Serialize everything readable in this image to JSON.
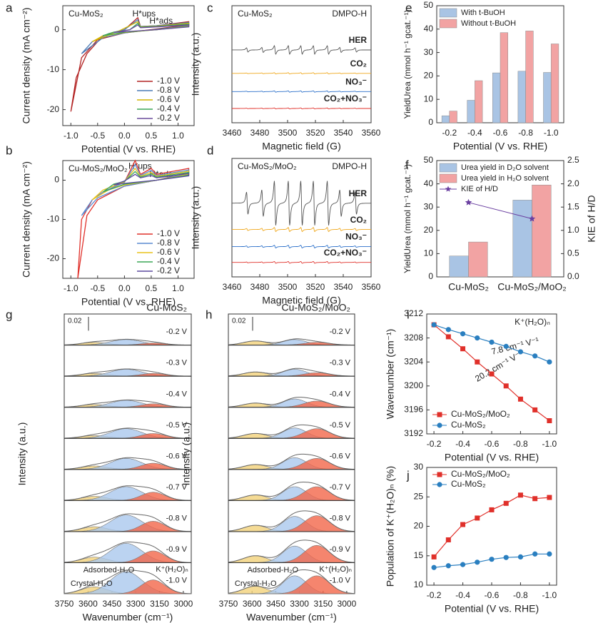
{
  "chart_data": [
    {
      "panel": "a",
      "type": "cv",
      "title": "Cu-MoS₂",
      "annotations": [
        "H*ups",
        "H*ads"
      ],
      "xlabel": "Potential (V vs. RHE)",
      "ylabel": "Current density (mA cm⁻²)",
      "xlim": [
        -1.15,
        1.3
      ],
      "xticks": [
        {
          "value": -1,
          "label": "-1.0"
        },
        -0.5,
        {
          "value": 0,
          "label": "0.0"
        },
        0.5,
        {
          "value": 1,
          "label": "1.0"
        }
      ],
      "ylim": [
        -24,
        6
      ],
      "yticks": [
        -20,
        -10,
        0
      ],
      "series": [
        {
          "name": "-1.0 V",
          "color": "#b22222",
          "x": [
            -1.0,
            -0.9,
            -0.7,
            -0.4,
            0.0,
            0.25,
            0.3,
            0.6,
            1.2,
            1.2,
            0.6,
            0.0,
            -0.5,
            -0.8,
            -1.0
          ],
          "values": [
            -20.5,
            -12,
            -6,
            -1.5,
            0.0,
            3.0,
            0.8,
            1.0,
            2.0,
            1.2,
            0.2,
            -0.8,
            -2.5,
            -7,
            -20.5
          ]
        },
        {
          "name": "-0.8 V",
          "color": "#4a7ab5",
          "x": [
            -0.8,
            -0.6,
            -0.3,
            0.0,
            0.25,
            0.3,
            0.6,
            1.2,
            1.2,
            0.6,
            0.0,
            -0.4,
            -0.8
          ],
          "values": [
            -6,
            -3,
            -1,
            0,
            2.5,
            0.8,
            1,
            1.8,
            1,
            0.1,
            -0.8,
            -2,
            -6
          ]
        },
        {
          "name": "-0.6 V",
          "color": "#d4b400",
          "x": [
            -0.6,
            -0.4,
            -0.1,
            0.25,
            0.3,
            0.6,
            1.2,
            1.2,
            0.6,
            0.0,
            -0.3,
            -0.6
          ],
          "values": [
            -3,
            -1.5,
            -0.3,
            2,
            0.7,
            0.9,
            1.6,
            0.9,
            0,
            -0.7,
            -1.4,
            -3
          ]
        },
        {
          "name": "-0.4 V",
          "color": "#3aa657",
          "x": [
            -0.4,
            -0.2,
            0.1,
            0.25,
            0.3,
            0.6,
            1.2,
            1.2,
            0.6,
            0.0,
            -0.4
          ],
          "values": [
            -1.5,
            -0.6,
            0,
            1.6,
            0.6,
            0.8,
            1.4,
            0.8,
            0,
            -0.6,
            -1.5
          ]
        },
        {
          "name": "-0.2 V",
          "color": "#6a4c9c",
          "x": [
            -0.2,
            0.1,
            0.25,
            0.3,
            0.6,
            1.2,
            1.2,
            0.6,
            0.0,
            -0.2
          ],
          "values": [
            -0.7,
            0,
            1.2,
            0.5,
            0.7,
            1.2,
            0.7,
            0,
            -0.5,
            -0.7
          ]
        }
      ]
    },
    {
      "panel": "b",
      "type": "cv",
      "title": "Cu-MoS₂/MoO₂",
      "annotations": [
        "H*ups",
        "H*ads"
      ],
      "xlabel": "Potential (V vs. RHE)",
      "ylabel": "Current density (mA cm⁻²)",
      "xlim": [
        -1.15,
        1.3
      ],
      "xticks": [
        {
          "value": -1,
          "label": "-1.0"
        },
        -0.5,
        {
          "value": 0,
          "label": "0.0"
        },
        0.5,
        {
          "value": 1,
          "label": "1.0"
        }
      ],
      "ylim": [
        -25,
        5
      ],
      "yticks": [
        -20,
        -10,
        0
      ],
      "series": [
        {
          "name": "-1.0 V",
          "color": "#e0302a",
          "x": [
            -0.87,
            -0.8,
            -0.6,
            -0.4,
            0.0,
            0.2,
            0.3,
            0.5,
            0.6,
            1.2,
            1.2,
            0.6,
            0.0,
            -0.5,
            -0.7,
            -0.87
          ],
          "values": [
            -25,
            -10,
            -5,
            -3,
            -0.5,
            5,
            1.5,
            3,
            1.5,
            3,
            2,
            0,
            -1.5,
            -5,
            -9,
            -25
          ]
        },
        {
          "name": "-0.8 V",
          "color": "#5a8ad0",
          "x": [
            -0.8,
            -0.6,
            -0.4,
            0.0,
            0.2,
            0.3,
            0.5,
            0.6,
            1.2,
            1.2,
            0.6,
            0.0,
            -0.5,
            -0.8
          ],
          "values": [
            -9,
            -5,
            -3,
            -0.5,
            4,
            1.2,
            2.5,
            1.2,
            2.6,
            1.8,
            0,
            -1.5,
            -4.5,
            -9
          ]
        },
        {
          "name": "-0.6 V",
          "color": "#e8c21a",
          "x": [
            -0.6,
            -0.4,
            0.0,
            0.2,
            0.3,
            0.5,
            0.6,
            1.2,
            1.2,
            0.6,
            0.0,
            -0.3,
            -0.6
          ],
          "values": [
            -5,
            -2.5,
            -0.4,
            3,
            1,
            2,
            1,
            2.3,
            1.5,
            0,
            -1.2,
            -2.5,
            -5
          ]
        },
        {
          "name": "-0.4 V",
          "color": "#3aa657",
          "x": [
            -0.4,
            -0.2,
            0.0,
            0.2,
            0.3,
            0.5,
            0.6,
            1.2,
            1.2,
            0.6,
            0.0,
            -0.4
          ],
          "values": [
            -3,
            -1,
            -0.3,
            2.2,
            0.8,
            1.6,
            0.8,
            2,
            1.3,
            0,
            -1,
            -3
          ]
        },
        {
          "name": "-0.2 V",
          "color": "#5b4a9e",
          "x": [
            -0.2,
            0.0,
            0.2,
            0.3,
            0.5,
            0.6,
            1.2,
            1.2,
            0.6,
            0.0,
            -0.2
          ],
          "values": [
            -1.2,
            -0.2,
            1.5,
            0.6,
            1.2,
            0.6,
            1.7,
            1.1,
            0,
            -0.8,
            -1.2
          ]
        }
      ]
    },
    {
      "panel": "c",
      "type": "epr",
      "title": "Cu-MoS₂",
      "subtitle": "DMPO-H",
      "xlabel": "Magnetic field (G)",
      "ylabel": "Intensity (a.u.)",
      "xlim": [
        3460,
        3560
      ],
      "xticks": [
        3460,
        3480,
        3500,
        3520,
        3540,
        3560
      ],
      "ylim": [
        -0.3,
        4.2
      ],
      "peaks": [
        3471,
        3482,
        3491,
        3501,
        3510,
        3519,
        3529,
        3538,
        3549
      ],
      "intensities": [
        0.5,
        0.6,
        1,
        1,
        1,
        1,
        1,
        0.6,
        0.5
      ],
      "traces": [
        {
          "name": "HER",
          "color": "#555555",
          "label_color": "#9a9a9a",
          "offset": 2.5,
          "amplitude": 0.25
        },
        {
          "name": "CO₂",
          "color": "#f0a81c",
          "offset": 1.6,
          "amplitude": 0.04
        },
        {
          "name": "NO₃⁻",
          "color": "#2a6fc9",
          "offset": 0.9,
          "amplitude": 0.04
        },
        {
          "name": "CO₂+NO₃⁻",
          "color": "#e0302a",
          "offset": 0.25,
          "amplitude": 0.03
        }
      ]
    },
    {
      "panel": "d",
      "type": "epr",
      "title": "Cu-MoS₂/MoO₂",
      "subtitle": "DMPO-H",
      "xlabel": "Magnetic field (G)",
      "ylabel": "Intensity (a.u.)",
      "xlim": [
        3460,
        3560
      ],
      "xticks": [
        3460,
        3480,
        3500,
        3520,
        3540,
        3560
      ],
      "ylim": [
        -0.3,
        4.2
      ],
      "peaks": [
        3471,
        3482,
        3491,
        3501,
        3510,
        3519,
        3529,
        3538,
        3549
      ],
      "intensities": [
        0.5,
        0.6,
        1,
        1,
        1,
        1,
        1,
        0.6,
        0.5
      ],
      "traces": [
        {
          "name": "HER",
          "color": "#555555",
          "label_color": "#9a9a9a",
          "offset": 2.5,
          "amplitude": 1.3
        },
        {
          "name": "CO₂",
          "color": "#f0a81c",
          "offset": 1.5,
          "amplitude": 0.12
        },
        {
          "name": "NO₃⁻",
          "color": "#2a6fc9",
          "offset": 0.85,
          "amplitude": 0.08
        },
        {
          "name": "CO₂+NO₃⁻",
          "color": "#e0302a",
          "offset": 0.25,
          "amplitude": 0.05
        }
      ]
    },
    {
      "panel": "e",
      "type": "bar",
      "xlabel": "Potential (V vs. RHE)",
      "ylabel": "YieldUrea (mmol h⁻¹ gcat.⁻¹)",
      "categories": [
        "-0.2",
        "-0.4",
        "-0.6",
        "-0.8",
        "-1.0"
      ],
      "ylim": [
        0,
        50
      ],
      "yticks": [
        0,
        10,
        20,
        30,
        40,
        50
      ],
      "legend": "upper left",
      "series": [
        {
          "name": "With t-BuOH",
          "color": "#a9c4e4",
          "values": [
            3,
            9.6,
            21.3,
            22,
            21.5
          ]
        },
        {
          "name": "Without t-BuOH",
          "color": "#f2a3a3",
          "values": [
            5,
            18,
            38.5,
            39.2,
            33.7
          ]
        }
      ]
    },
    {
      "panel": "f",
      "type": "bar",
      "ylabel": "YieldUrea (mmol h⁻¹ gcat.⁻¹)",
      "y2label": "KIE of H/D",
      "categories": [
        "Cu-MoS₂",
        "Cu-MoS₂/MoO₂"
      ],
      "ylim": [
        0,
        50
      ],
      "yticks": [
        0,
        10,
        20,
        30,
        40,
        50
      ],
      "y2lim": [
        0,
        2.5
      ],
      "y2ticks": [
        {
          "value": 0,
          "label": "0.0"
        },
        0.5,
        {
          "value": 1,
          "label": "1.0"
        },
        1.5,
        {
          "value": 2,
          "label": "2.0"
        },
        2.5
      ],
      "legend": "upper left",
      "series": [
        {
          "name": "Urea yield in D₂O solvent",
          "color": "#a9c4e4",
          "values": [
            9,
            33
          ]
        },
        {
          "name": "Urea yield in H₂O solvent",
          "color": "#f2a3a3",
          "values": [
            15,
            39.5
          ]
        },
        {
          "name": "KIE of H/D",
          "color": "#6a3fa0",
          "axis": "y2",
          "values": [
            1.6,
            1.25
          ]
        }
      ]
    },
    {
      "panel": "g",
      "type": "spectra",
      "title": "Cu-MoS₂",
      "scale_bar": 0.02,
      "xlabel": "Wavenumber (cm⁻¹)",
      "ylabel": "Intensity (a.u.)",
      "xlim": [
        3750,
        2950
      ],
      "xticks": [
        3750,
        3600,
        3450,
        3300,
        3150,
        3000
      ],
      "ylim": [
        0,
        0.045
      ],
      "components": [
        {
          "name": "Crystal-H₂O",
          "color": "#f2d27a",
          "label_color": "#e0b030",
          "center": 3560,
          "width": 80
        },
        {
          "name": "Adsorbed-H₂O",
          "color": "#aac8ee",
          "label_color": "#5a9bd5",
          "center": 3360,
          "width": 100
        },
        {
          "name": "K⁺(H₂O)ₙ",
          "color": "#f2674a",
          "label_color": "#e0302a",
          "center": 3190,
          "width": 75
        }
      ],
      "rows": [
        {
          "label": "-0.2 V",
          "amplitudes": [
            0.004,
            0.008,
            0.003
          ]
        },
        {
          "label": "-0.3 V",
          "amplitudes": [
            0.004,
            0.01,
            0.004
          ]
        },
        {
          "label": "-0.4 V",
          "amplitudes": [
            0.004,
            0.01,
            0.005
          ]
        },
        {
          "label": "-0.5 V",
          "amplitudes": [
            0.004,
            0.014,
            0.007
          ]
        },
        {
          "label": "-0.6 V",
          "amplitudes": [
            0.005,
            0.016,
            0.009
          ]
        },
        {
          "label": "-0.7 V",
          "amplitudes": [
            0.006,
            0.02,
            0.012
          ]
        },
        {
          "label": "-0.8 V",
          "amplitudes": [
            0.007,
            0.024,
            0.015
          ]
        },
        {
          "label": "-0.9 V",
          "amplitudes": [
            0.008,
            0.028,
            0.017
          ]
        },
        {
          "label": "-1.0 V",
          "amplitudes": [
            0.01,
            0.032,
            0.02
          ]
        }
      ]
    },
    {
      "panel": "h",
      "type": "spectra",
      "title": "Cu-MoS₂/MoO₂",
      "scale_bar": 0.02,
      "xlabel": "Wavenumber (cm⁻¹)",
      "ylabel": "Intensity (a.u.)",
      "xlim": [
        3750,
        2950
      ],
      "xticks": [
        3750,
        3600,
        3450,
        3300,
        3150,
        3000
      ],
      "ylim": [
        0,
        0.045
      ],
      "components": [
        {
          "name": "Crystal-H₂O",
          "color": "#f2d27a",
          "label_color": "#e0b030",
          "center": 3580,
          "width": 75
        },
        {
          "name": "Adsorbed-H₂O",
          "color": "#aac8ee",
          "label_color": "#5a9bd5",
          "center": 3330,
          "width": 75
        },
        {
          "name": "K⁺(H₂O)ₙ",
          "color": "#f2674a",
          "label_color": "#e0302a",
          "center": 3190,
          "width": 80
        }
      ],
      "rows": [
        {
          "label": "-0.2 V",
          "amplitudes": [
            0.006,
            0.008,
            0.004
          ]
        },
        {
          "label": "-0.3 V",
          "amplitudes": [
            0.006,
            0.01,
            0.005
          ]
        },
        {
          "label": "-0.4 V",
          "amplitudes": [
            0.006,
            0.012,
            0.009
          ]
        },
        {
          "label": "-0.5 V",
          "amplitudes": [
            0.007,
            0.015,
            0.014
          ]
        },
        {
          "label": "-0.6 V",
          "amplitudes": [
            0.007,
            0.017,
            0.016
          ]
        },
        {
          "label": "-0.7 V",
          "amplitudes": [
            0.008,
            0.02,
            0.02
          ]
        },
        {
          "label": "-0.8 V",
          "amplitudes": [
            0.009,
            0.022,
            0.023
          ]
        },
        {
          "label": "-0.9 V",
          "amplitudes": [
            0.01,
            0.024,
            0.025
          ]
        },
        {
          "label": "-1.0 V",
          "amplitudes": [
            0.011,
            0.026,
            0.026
          ]
        }
      ]
    },
    {
      "panel": "i",
      "type": "scatter",
      "xlabel": "Potential (V vs. RHE)",
      "ylabel": "Wavenumber (cm⁻¹)",
      "annotations": [
        {
          "text": "K⁺(H₂O)ₙ",
          "color": "#222222"
        },
        {
          "text": "7.8 cm⁻¹ V⁻¹",
          "color": "#2a7fc0"
        },
        {
          "text": "20.2 cm⁻¹ V⁻¹",
          "color": "#e0302a"
        }
      ],
      "x": [
        -0.2,
        -0.3,
        -0.4,
        -0.5,
        -0.6,
        -0.7,
        -0.8,
        -0.9,
        -1.0
      ],
      "xlim": [
        -0.15,
        -1.05
      ],
      "xticks": [
        -0.2,
        -0.4,
        -0.6,
        -0.8,
        {
          "value": -1,
          "label": "-1.0"
        }
      ],
      "ylim": [
        3192,
        3212
      ],
      "yticks": [
        3192,
        3196,
        3200,
        3204,
        3208,
        3212
      ],
      "legend": "lower left",
      "series": [
        {
          "name": "Cu-MoS₂/MoO₂",
          "color": "#e0302a",
          "marker": "square",
          "values": [
            3210.2,
            3208.2,
            3206.2,
            3204,
            3202,
            3200,
            3197.8,
            3196,
            3194.2
          ]
        },
        {
          "name": "Cu-MoS₂",
          "color": "#2a7fc0",
          "marker": "circle",
          "values": [
            3210.2,
            3209.4,
            3208.7,
            3208,
            3207.3,
            3206.6,
            3205.7,
            3205,
            3204
          ]
        }
      ]
    },
    {
      "panel": "j",
      "type": "line",
      "xlabel": "Potential (V vs. RHE)",
      "ylabel": "Population of K⁺(H₂O)ₙ (%)",
      "x": [
        -0.2,
        -0.3,
        -0.4,
        -0.5,
        -0.6,
        -0.7,
        -0.8,
        -0.9,
        -1.0
      ],
      "xlim": [
        -0.15,
        -1.05
      ],
      "xticks": [
        -0.2,
        -0.4,
        -0.6,
        -0.8,
        {
          "value": -1,
          "label": "-1.0"
        }
      ],
      "ylim": [
        10,
        30
      ],
      "yticks": [
        10,
        15,
        20,
        25,
        30
      ],
      "legend": "upper left",
      "series": [
        {
          "name": "Cu-MoS₂/MoO₂",
          "color": "#e0302a",
          "marker": "square",
          "values": [
            14.8,
            17.7,
            20.3,
            21.4,
            22.8,
            23.9,
            25.3,
            24.7,
            24.9
          ]
        },
        {
          "name": "Cu-MoS₂",
          "color": "#2a7fc0",
          "marker": "circle",
          "values": [
            13,
            13.3,
            13.5,
            13.9,
            14.4,
            14.7,
            14.8,
            15.3,
            15.3
          ]
        }
      ]
    }
  ]
}
